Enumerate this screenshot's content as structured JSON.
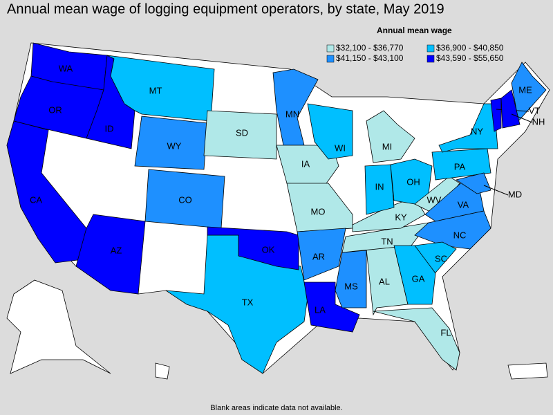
{
  "header": {
    "title": "Annual mean wage of logging equipment operators, by state, May 2019"
  },
  "legend": {
    "title": "Annual mean wage",
    "bins": [
      {
        "label": "$32,100 - $36,770",
        "color": "#b0e8e8"
      },
      {
        "label": "$36,900 - $40,850",
        "color": "#00bfff"
      },
      {
        "label": "$41,150 - $43,100",
        "color": "#1e90ff"
      },
      {
        "label": "$43,590 - $55,650",
        "color": "#0000ff"
      }
    ]
  },
  "states": [
    {
      "label": "WA",
      "color": "#0000ff"
    },
    {
      "label": "OR",
      "color": "#0000ff"
    },
    {
      "label": "ID",
      "color": "#0000ff"
    },
    {
      "label": "CA",
      "color": "#0000ff"
    },
    {
      "label": "AZ",
      "color": "#0000ff"
    },
    {
      "label": "MT",
      "color": "#00bfff"
    },
    {
      "label": "WY",
      "color": "#1e90ff"
    },
    {
      "label": "CO",
      "color": "#1e90ff"
    },
    {
      "label": "TX",
      "color": "#00bfff"
    },
    {
      "label": "OK",
      "color": "#0000ff"
    },
    {
      "label": "SD",
      "color": "#b0e8e8"
    },
    {
      "label": "MN",
      "color": "#1e90ff"
    },
    {
      "label": "IA",
      "color": "#b0e8e8"
    },
    {
      "label": "MO",
      "color": "#b0e8e8"
    },
    {
      "label": "AR",
      "color": "#1e90ff"
    },
    {
      "label": "LA",
      "color": "#0000ff"
    },
    {
      "label": "MS",
      "color": "#1e90ff"
    },
    {
      "label": "AL",
      "color": "#b0e8e8"
    },
    {
      "label": "TN",
      "color": "#b0e8e8"
    },
    {
      "label": "KY",
      "color": "#b0e8e8"
    },
    {
      "label": "WI",
      "color": "#00bfff"
    },
    {
      "label": "MI",
      "color": "#b0e8e8"
    },
    {
      "label": "IN",
      "color": "#00bfff"
    },
    {
      "label": "OH",
      "color": "#00bfff"
    },
    {
      "label": "WV",
      "color": "#b0e8e8"
    },
    {
      "label": "VA",
      "color": "#1e90ff"
    },
    {
      "label": "NC",
      "color": "#1e90ff"
    },
    {
      "label": "SC",
      "color": "#00bfff"
    },
    {
      "label": "GA",
      "color": "#00bfff"
    },
    {
      "label": "FL",
      "color": "#b0e8e8"
    },
    {
      "label": "PA",
      "color": "#00bfff"
    },
    {
      "label": "NY",
      "color": "#00bfff"
    },
    {
      "label": "ME",
      "color": "#1e90ff"
    },
    {
      "label": "VT",
      "color": "#0000ff"
    },
    {
      "label": "NH",
      "color": "#0000ff"
    },
    {
      "label": "MD",
      "color": "#1e90ff"
    }
  ],
  "footnote": "Blank areas indicate data not available."
}
